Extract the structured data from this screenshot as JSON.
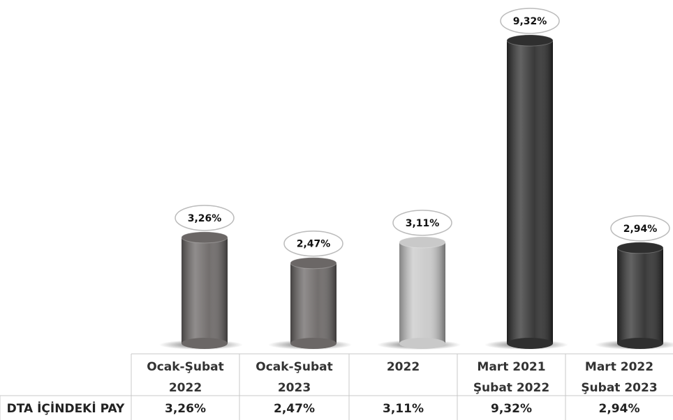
{
  "chart_data": {
    "type": "bar",
    "categories": [
      [
        "Ocak-Şubat",
        "2022"
      ],
      [
        "Ocak-Şubat",
        "2023"
      ],
      [
        "2022"
      ],
      [
        "Mart 2021",
        "Şubat  2022"
      ],
      [
        "Mart 2022",
        "Şubat  2023"
      ]
    ],
    "values": [
      3.26,
      2.47,
      3.11,
      9.32,
      2.94
    ],
    "value_labels": [
      "3,26%",
      "2,47%",
      "3,11%",
      "9,32%",
      "2,94%"
    ],
    "colors": [
      "#6b6766",
      "#6b6766",
      "#c9c9c9",
      "#2f2f2f",
      "#2f2f2f"
    ],
    "table_row_label": "DTA İÇİNDEKİ PAY"
  }
}
